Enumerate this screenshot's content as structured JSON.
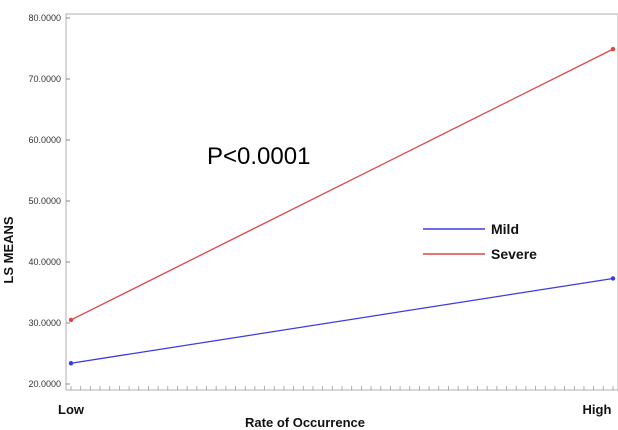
{
  "chart_data": {
    "type": "line",
    "title": "",
    "xlabel": "Rate of Occurrence",
    "ylabel": "LS MEANS",
    "categories": [
      "Low",
      "High"
    ],
    "ylim": [
      20,
      80
    ],
    "yticks": [
      "20.0000",
      "30.0000",
      "40.0000",
      "50.0000",
      "60.0000",
      "70.0000",
      "80.0000"
    ],
    "grid": false,
    "legend_position": "center-right",
    "annotation": "P<0.0001",
    "series": [
      {
        "name": "Mild",
        "values": [
          23.4,
          37.3
        ],
        "color": "#3b3bdc"
      },
      {
        "name": "Severe",
        "values": [
          30.5,
          74.9
        ],
        "color": "#e04545"
      }
    ]
  }
}
